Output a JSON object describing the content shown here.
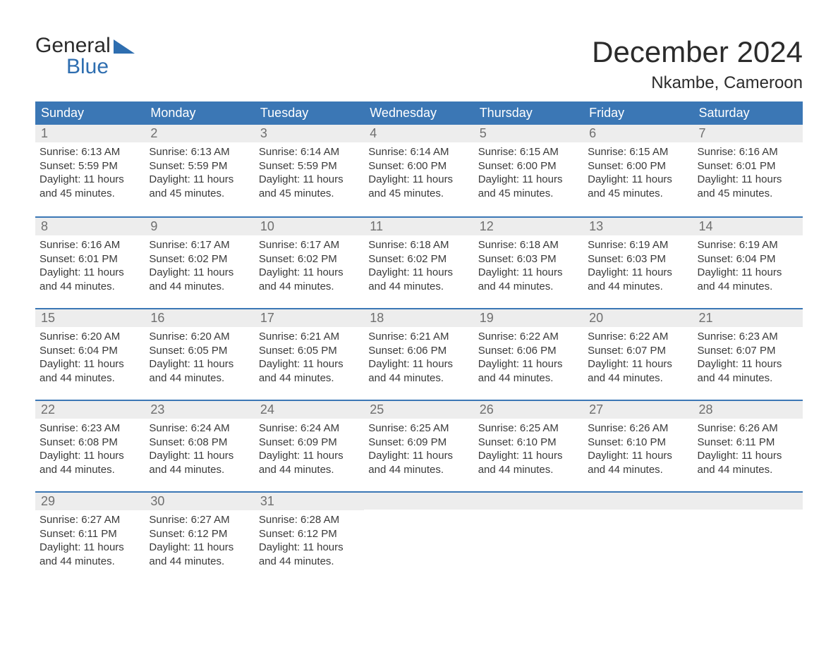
{
  "logo": {
    "line1": "General",
    "line2": "Blue"
  },
  "title": "December 2024",
  "location": "Nkambe, Cameroon",
  "colors": {
    "header_bg": "#3b77b5",
    "header_text": "#ffffff",
    "daynum_bg": "#ededed",
    "daynum_text": "#6f6f6f",
    "body_text": "#3a3a3a",
    "week_border": "#3b77b5",
    "logo_blue": "#2e6eb0"
  },
  "text_labels": {
    "sunrise": "Sunrise:",
    "sunset": "Sunset:",
    "daylight": "Daylight:"
  },
  "day_names": [
    "Sunday",
    "Monday",
    "Tuesday",
    "Wednesday",
    "Thursday",
    "Friday",
    "Saturday"
  ],
  "weeks": [
    [
      {
        "n": "1",
        "sunrise": "6:13 AM",
        "sunset": "5:59 PM",
        "daylight": "11 hours and 45 minutes."
      },
      {
        "n": "2",
        "sunrise": "6:13 AM",
        "sunset": "5:59 PM",
        "daylight": "11 hours and 45 minutes."
      },
      {
        "n": "3",
        "sunrise": "6:14 AM",
        "sunset": "5:59 PM",
        "daylight": "11 hours and 45 minutes."
      },
      {
        "n": "4",
        "sunrise": "6:14 AM",
        "sunset": "6:00 PM",
        "daylight": "11 hours and 45 minutes."
      },
      {
        "n": "5",
        "sunrise": "6:15 AM",
        "sunset": "6:00 PM",
        "daylight": "11 hours and 45 minutes."
      },
      {
        "n": "6",
        "sunrise": "6:15 AM",
        "sunset": "6:00 PM",
        "daylight": "11 hours and 45 minutes."
      },
      {
        "n": "7",
        "sunrise": "6:16 AM",
        "sunset": "6:01 PM",
        "daylight": "11 hours and 45 minutes."
      }
    ],
    [
      {
        "n": "8",
        "sunrise": "6:16 AM",
        "sunset": "6:01 PM",
        "daylight": "11 hours and 44 minutes."
      },
      {
        "n": "9",
        "sunrise": "6:17 AM",
        "sunset": "6:02 PM",
        "daylight": "11 hours and 44 minutes."
      },
      {
        "n": "10",
        "sunrise": "6:17 AM",
        "sunset": "6:02 PM",
        "daylight": "11 hours and 44 minutes."
      },
      {
        "n": "11",
        "sunrise": "6:18 AM",
        "sunset": "6:02 PM",
        "daylight": "11 hours and 44 minutes."
      },
      {
        "n": "12",
        "sunrise": "6:18 AM",
        "sunset": "6:03 PM",
        "daylight": "11 hours and 44 minutes."
      },
      {
        "n": "13",
        "sunrise": "6:19 AM",
        "sunset": "6:03 PM",
        "daylight": "11 hours and 44 minutes."
      },
      {
        "n": "14",
        "sunrise": "6:19 AM",
        "sunset": "6:04 PM",
        "daylight": "11 hours and 44 minutes."
      }
    ],
    [
      {
        "n": "15",
        "sunrise": "6:20 AM",
        "sunset": "6:04 PM",
        "daylight": "11 hours and 44 minutes."
      },
      {
        "n": "16",
        "sunrise": "6:20 AM",
        "sunset": "6:05 PM",
        "daylight": "11 hours and 44 minutes."
      },
      {
        "n": "17",
        "sunrise": "6:21 AM",
        "sunset": "6:05 PM",
        "daylight": "11 hours and 44 minutes."
      },
      {
        "n": "18",
        "sunrise": "6:21 AM",
        "sunset": "6:06 PM",
        "daylight": "11 hours and 44 minutes."
      },
      {
        "n": "19",
        "sunrise": "6:22 AM",
        "sunset": "6:06 PM",
        "daylight": "11 hours and 44 minutes."
      },
      {
        "n": "20",
        "sunrise": "6:22 AM",
        "sunset": "6:07 PM",
        "daylight": "11 hours and 44 minutes."
      },
      {
        "n": "21",
        "sunrise": "6:23 AM",
        "sunset": "6:07 PM",
        "daylight": "11 hours and 44 minutes."
      }
    ],
    [
      {
        "n": "22",
        "sunrise": "6:23 AM",
        "sunset": "6:08 PM",
        "daylight": "11 hours and 44 minutes."
      },
      {
        "n": "23",
        "sunrise": "6:24 AM",
        "sunset": "6:08 PM",
        "daylight": "11 hours and 44 minutes."
      },
      {
        "n": "24",
        "sunrise": "6:24 AM",
        "sunset": "6:09 PM",
        "daylight": "11 hours and 44 minutes."
      },
      {
        "n": "25",
        "sunrise": "6:25 AM",
        "sunset": "6:09 PM",
        "daylight": "11 hours and 44 minutes."
      },
      {
        "n": "26",
        "sunrise": "6:25 AM",
        "sunset": "6:10 PM",
        "daylight": "11 hours and 44 minutes."
      },
      {
        "n": "27",
        "sunrise": "6:26 AM",
        "sunset": "6:10 PM",
        "daylight": "11 hours and 44 minutes."
      },
      {
        "n": "28",
        "sunrise": "6:26 AM",
        "sunset": "6:11 PM",
        "daylight": "11 hours and 44 minutes."
      }
    ],
    [
      {
        "n": "29",
        "sunrise": "6:27 AM",
        "sunset": "6:11 PM",
        "daylight": "11 hours and 44 minutes."
      },
      {
        "n": "30",
        "sunrise": "6:27 AM",
        "sunset": "6:12 PM",
        "daylight": "11 hours and 44 minutes."
      },
      {
        "n": "31",
        "sunrise": "6:28 AM",
        "sunset": "6:12 PM",
        "daylight": "11 hours and 44 minutes."
      },
      {
        "empty": true
      },
      {
        "empty": true
      },
      {
        "empty": true
      },
      {
        "empty": true
      }
    ]
  ]
}
